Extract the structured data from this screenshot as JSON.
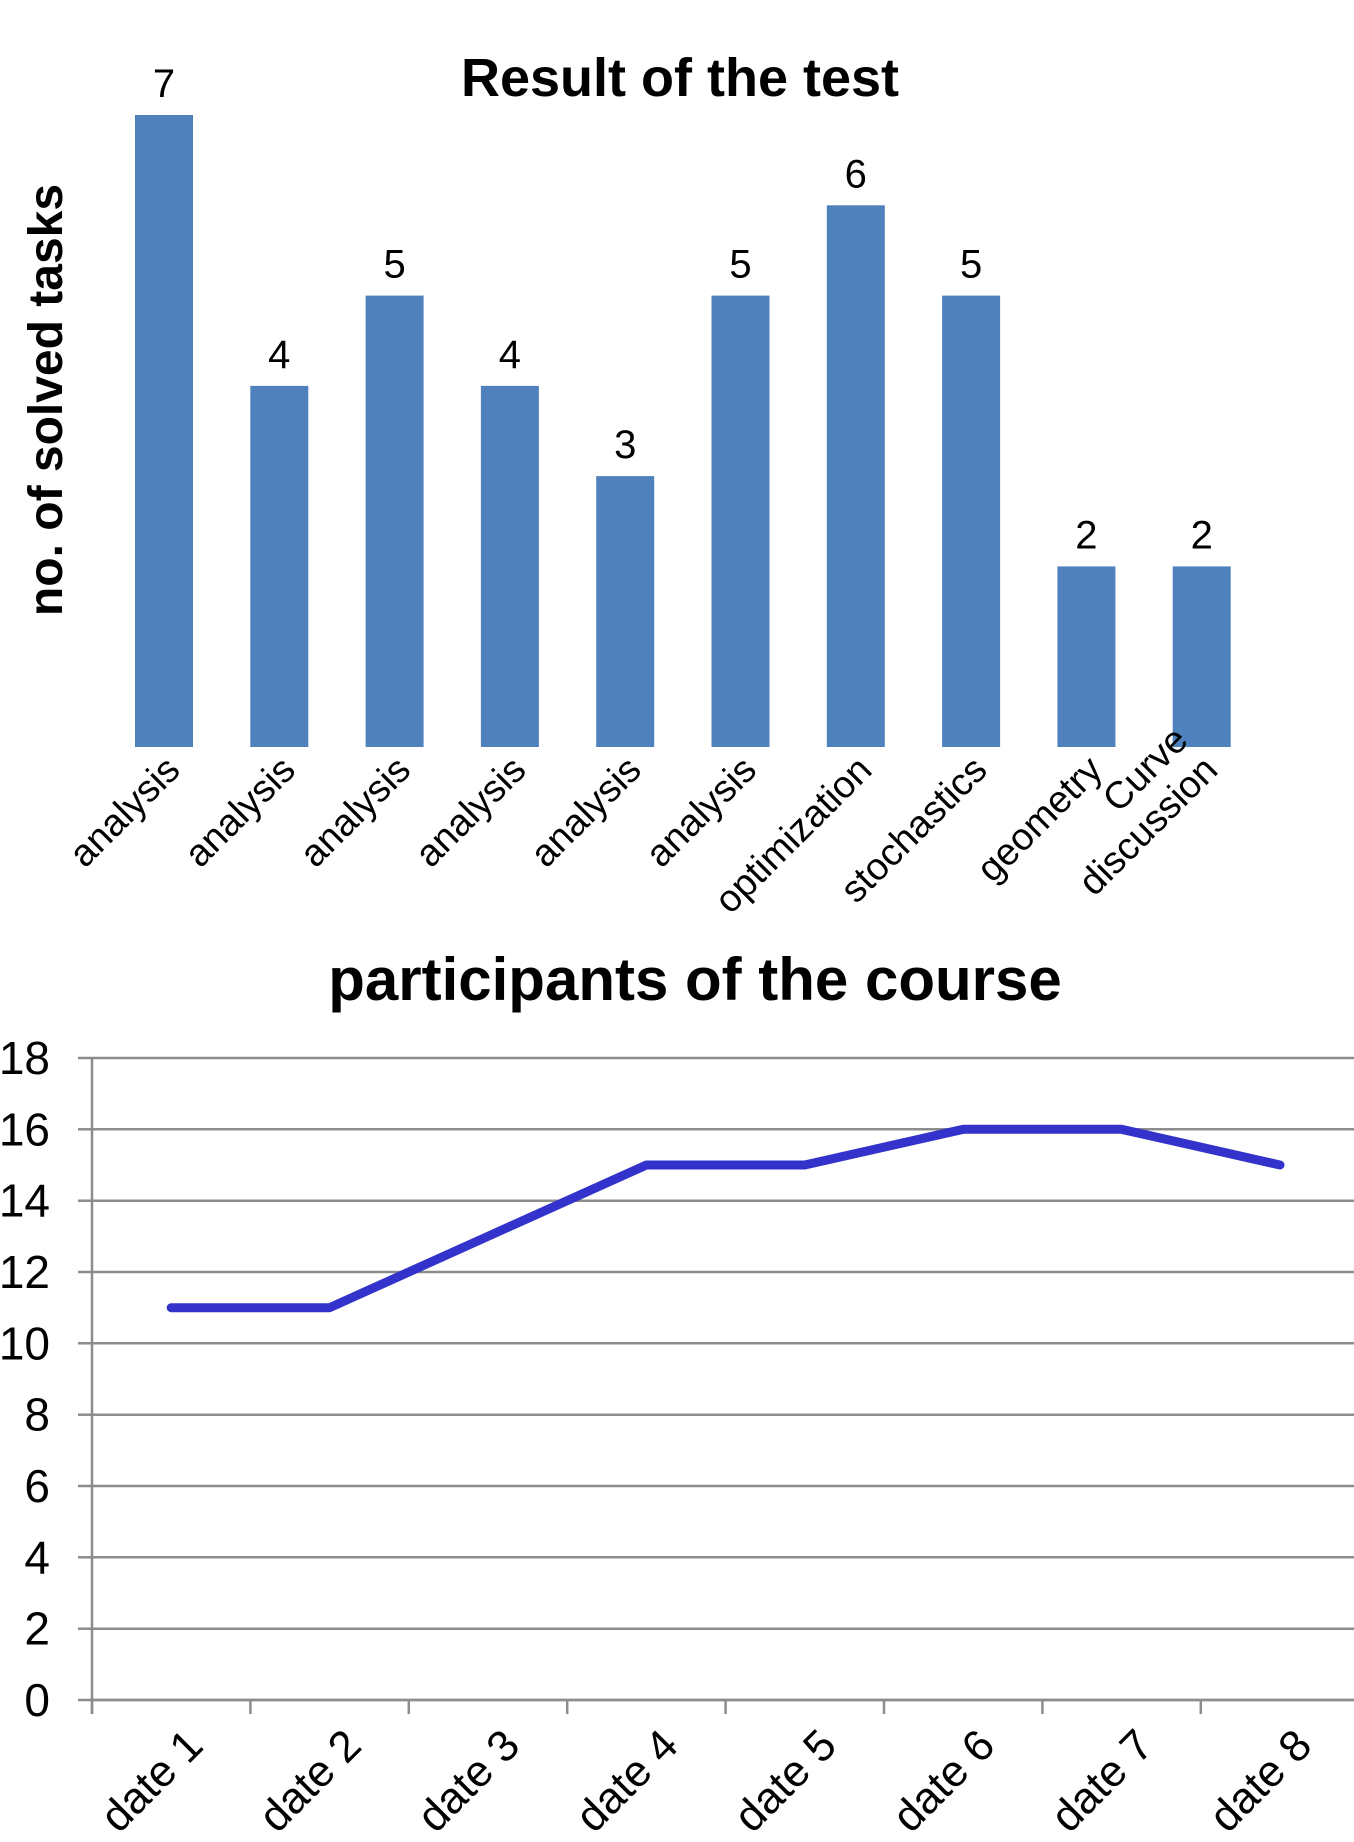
{
  "chart_data": [
    {
      "type": "bar",
      "title": "Result of the test",
      "ylabel": "no. of solved tasks",
      "xlabel": "",
      "categories": [
        [
          "analysis"
        ],
        [
          "analysis"
        ],
        [
          "analysis"
        ],
        [
          "analysis"
        ],
        [
          "analysis"
        ],
        [
          "analysis"
        ],
        [
          "optimization"
        ],
        [
          "stochastics"
        ],
        [
          "geometry"
        ],
        [
          "Curve",
          "discussion"
        ]
      ],
      "values": [
        7,
        4,
        5,
        4,
        3,
        5,
        6,
        5,
        2,
        2
      ],
      "ylim": [
        0,
        7
      ],
      "show_data_labels": true,
      "grid": false,
      "color": "#4f81bd"
    },
    {
      "type": "line",
      "title": "participants of the course",
      "categories": [
        "date 1",
        "date 2",
        "date 3",
        "date 4",
        "date 5",
        "date 6",
        "date 7",
        "date 8"
      ],
      "values": [
        11,
        11,
        13,
        15,
        15,
        16,
        16,
        15
      ],
      "ylim": [
        0,
        18
      ],
      "yticks": [
        0,
        2,
        4,
        6,
        8,
        10,
        12,
        14,
        16,
        18
      ],
      "grid": true,
      "color": "#3333cc"
    }
  ]
}
